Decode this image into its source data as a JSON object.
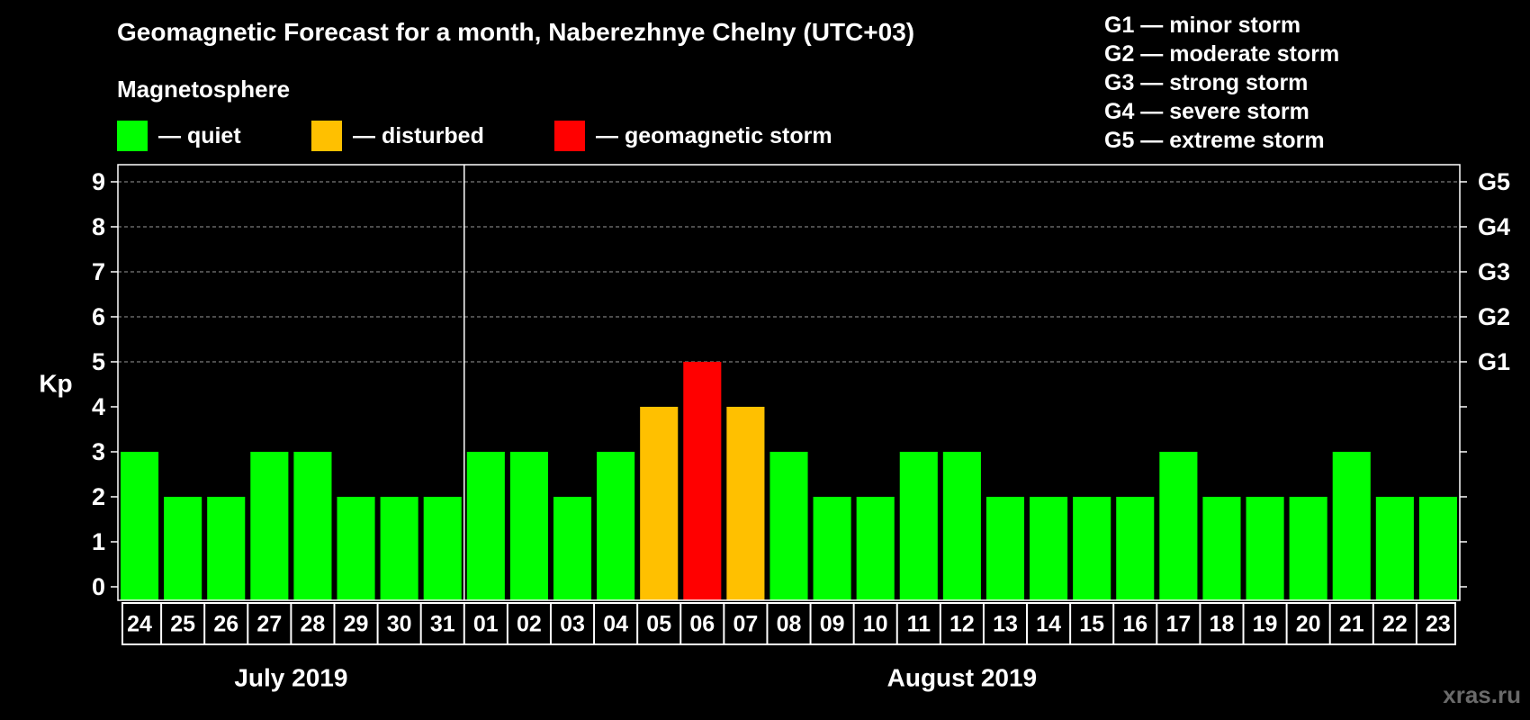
{
  "title": "Geomagnetic Forecast for a month, Naberezhnye Chelny (UTC+03)",
  "magnetosphere_label": "Magnetosphere",
  "legend": [
    {
      "label": "— quiet",
      "color": "#00ff00"
    },
    {
      "label": "— disturbed",
      "color": "#ffc000"
    },
    {
      "label": "— geomagnetic storm",
      "color": "#ff0000"
    }
  ],
  "g_levels": [
    "G1 — minor storm",
    "G2 — moderate storm",
    "G3 — strong storm",
    "G4 — severe storm",
    "G5 — extreme storm"
  ],
  "watermark": "xras.ru",
  "chart_data": {
    "type": "bar",
    "title": "Geomagnetic Forecast for a month, Naberezhnye Chelny (UTC+03)",
    "ylabel": "Kp",
    "ylim": [
      0,
      9
    ],
    "y_ticks": [
      "0",
      "1",
      "2",
      "3",
      "4",
      "5",
      "6",
      "7",
      "8",
      "9"
    ],
    "right_axis_labels": [
      {
        "kp": 5,
        "label": "G1"
      },
      {
        "kp": 6,
        "label": "G2"
      },
      {
        "kp": 7,
        "label": "G3"
      },
      {
        "kp": 8,
        "label": "G4"
      },
      {
        "kp": 9,
        "label": "G5"
      }
    ],
    "categories": [
      "24",
      "25",
      "26",
      "27",
      "28",
      "29",
      "30",
      "31",
      "01",
      "02",
      "03",
      "04",
      "05",
      "06",
      "07",
      "08",
      "09",
      "10",
      "11",
      "12",
      "13",
      "14",
      "15",
      "16",
      "17",
      "18",
      "19",
      "20",
      "21",
      "22",
      "23"
    ],
    "values": [
      3,
      2,
      2,
      3,
      3,
      2,
      2,
      2,
      3,
      3,
      2,
      3,
      4,
      5,
      4,
      3,
      2,
      2,
      3,
      3,
      2,
      2,
      2,
      2,
      3,
      2,
      2,
      2,
      3,
      2,
      2
    ],
    "months": [
      {
        "label": "July 2019",
        "first_index": 0,
        "last_index": 7
      },
      {
        "label": "August 2019",
        "first_index": 8,
        "last_index": 30
      }
    ],
    "grid": true,
    "colors": {
      "quiet": "#00ff00",
      "disturbed": "#ffc000",
      "storm": "#ff0000"
    }
  }
}
